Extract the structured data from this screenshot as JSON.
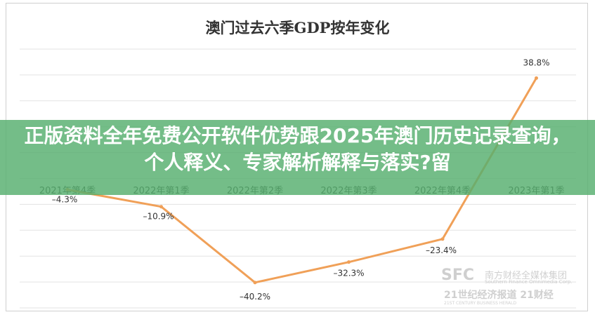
{
  "chart_data": {
    "type": "line",
    "title": "澳门过去六季GDP按年变化",
    "categories": [
      "2021年第4季",
      "2022年第1季",
      "2022年第2季",
      "2022年第3季",
      "2022年第4季",
      "2023年第1季"
    ],
    "series": [
      {
        "values": [
          -4.3,
          -10.9,
          -40.2,
          -32.3,
          -23.4,
          38.8
        ],
        "labels": [
          "–4.3%",
          "–10.9%",
          "–40.2%",
          "–32.3%",
          "–23.4%",
          "38.8%"
        ]
      }
    ],
    "ylim": [
      -50,
      50
    ],
    "grid": true,
    "line_color": "#f0a058"
  },
  "overlay": {
    "text": "正版资料全年免费公开软件优势跟2025年澳门历史记录查询，个人释义、专家解析解释与落实?留"
  },
  "watermark": {
    "logo": "SFC",
    "name": "南方财经全媒体集团",
    "subtitle": "Southern Finance Omnimedia Corp.",
    "row2": "21世纪经济报道  21财经",
    "row3": "21ST CENTURY BUSINESS HERALD"
  }
}
